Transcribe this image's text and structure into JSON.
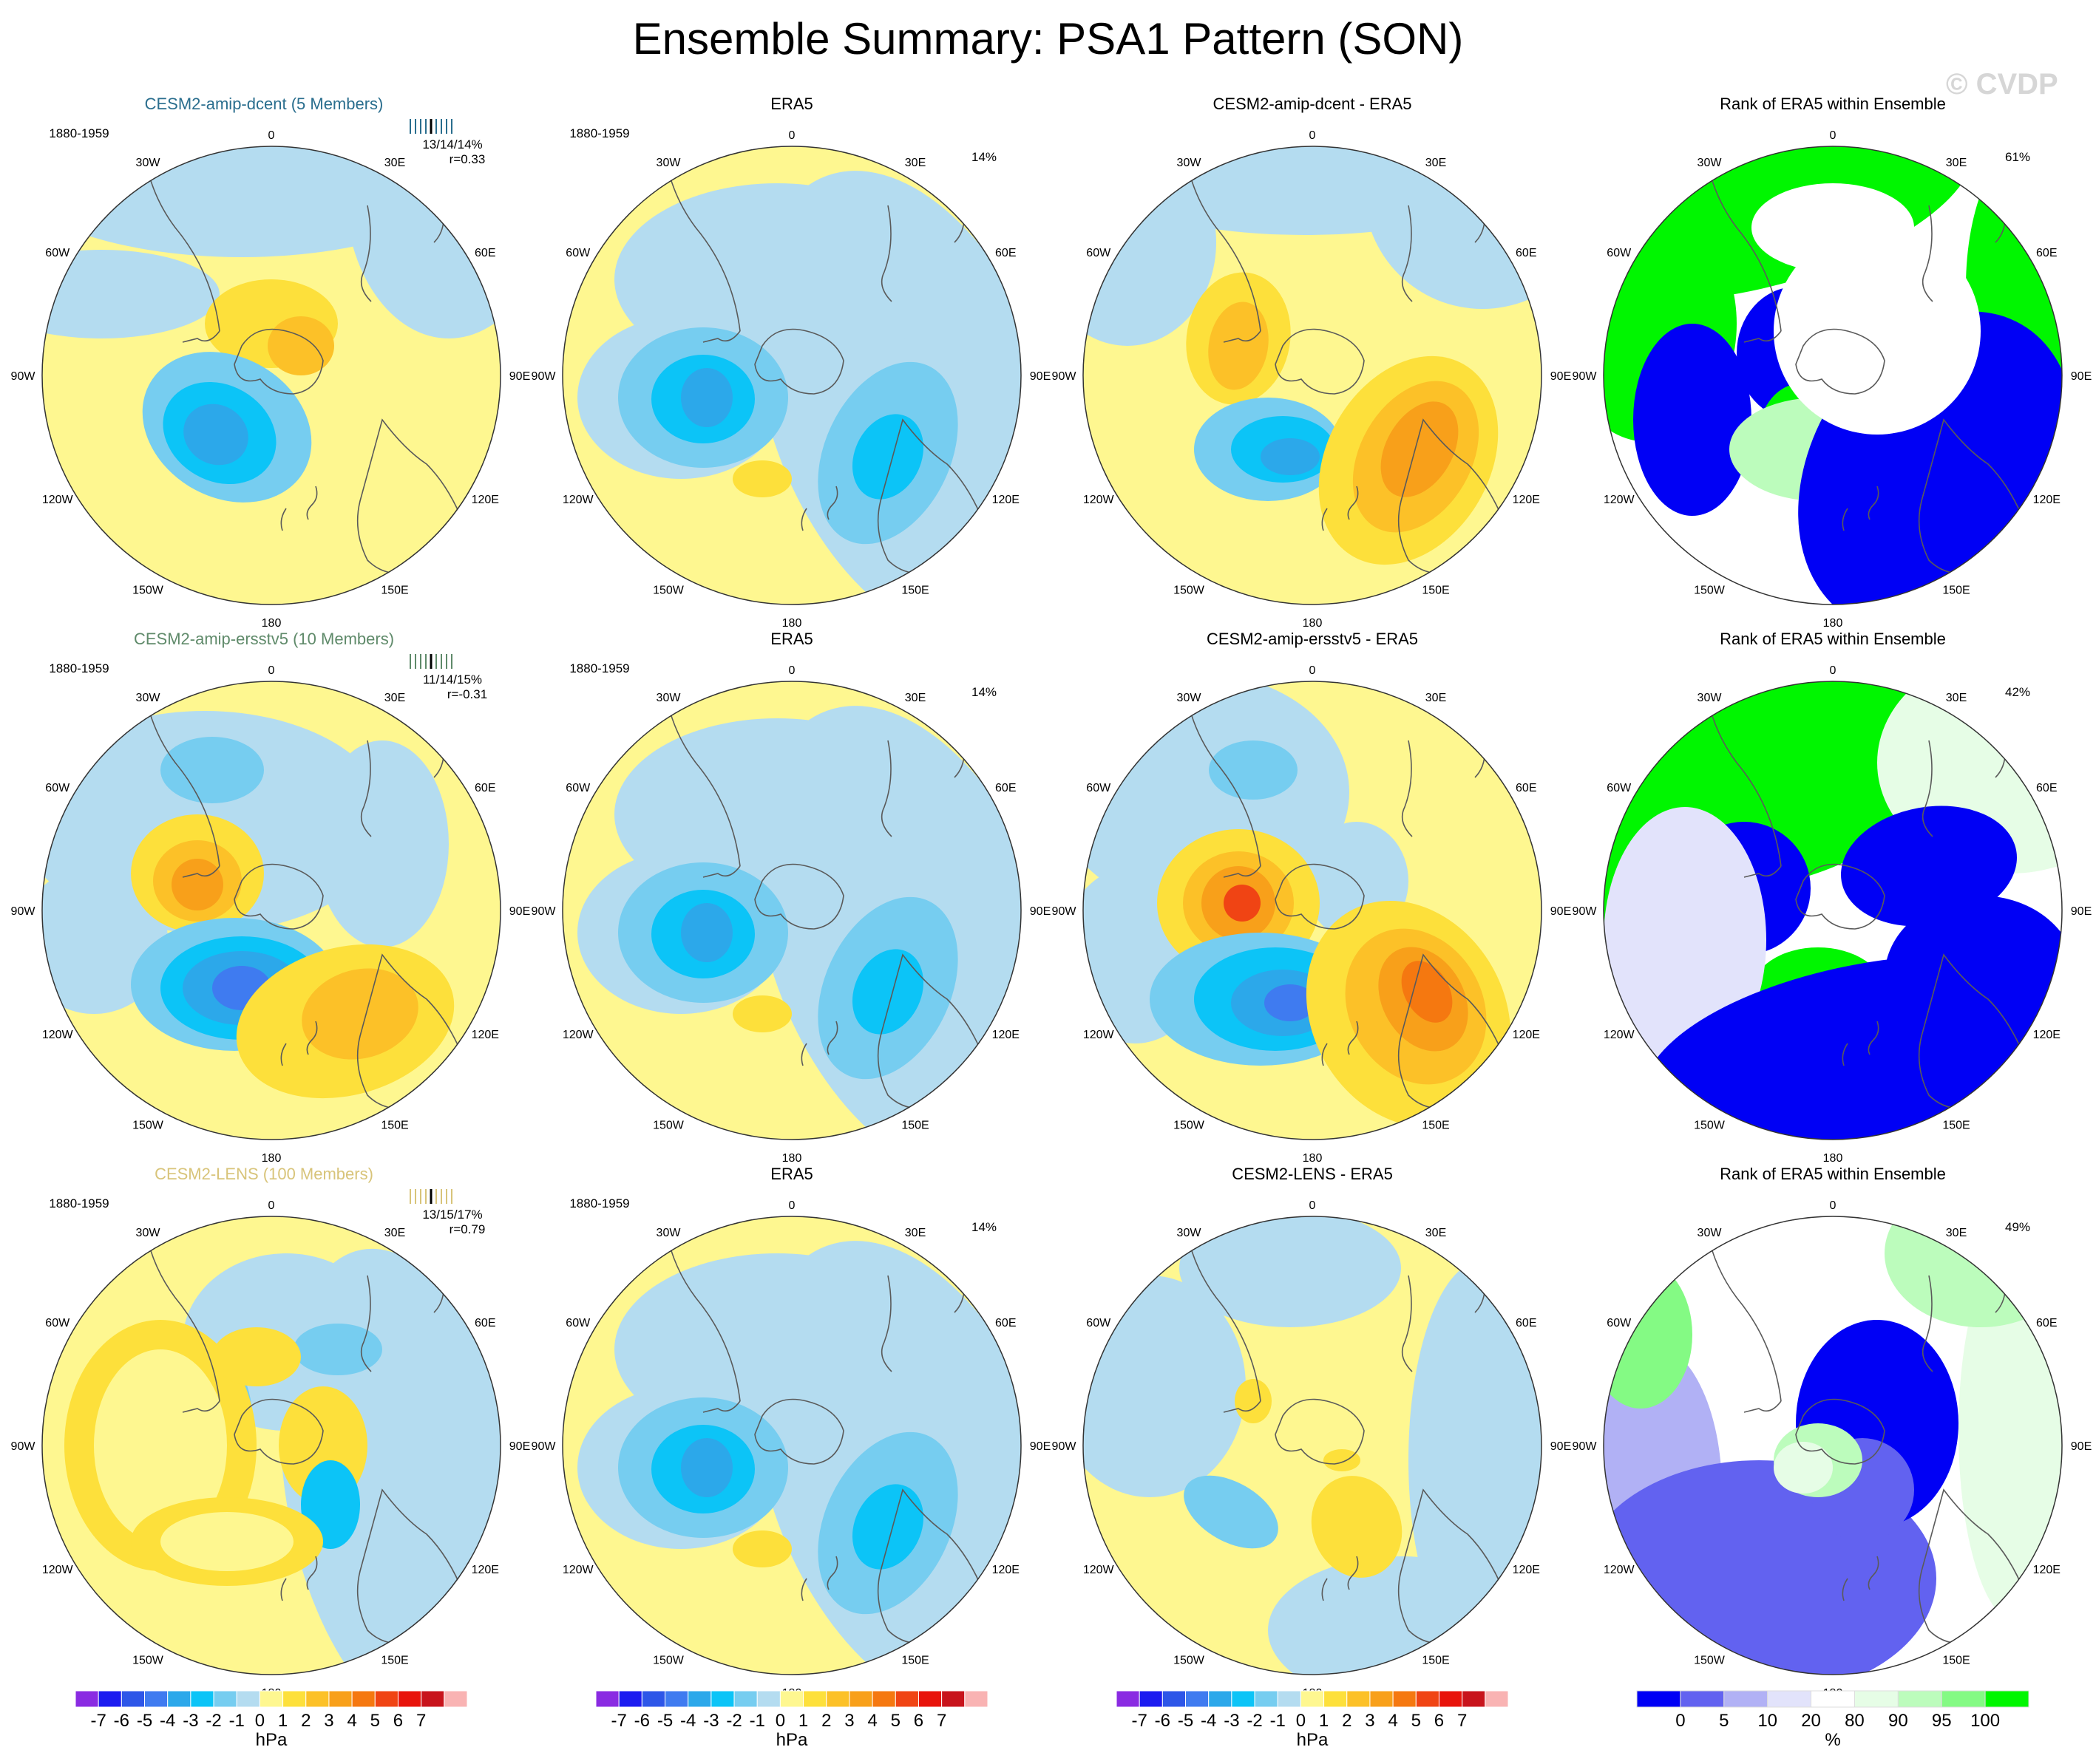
{
  "figure": {
    "title": "Ensemble Summary: PSA1 Pattern (SON)",
    "watermark": "© CVDP"
  },
  "colors": {
    "diverging": [
      "#8a2be2",
      "#1c1cf0",
      "#2d56e8",
      "#3f7bf0",
      "#2ca8ea",
      "#0cc4f7",
      "#76cdf0",
      "#b4dcf0",
      "#fef790",
      "#fde03b",
      "#fcc128",
      "#f8a01a",
      "#f57810",
      "#f04414",
      "#e8140c",
      "#c8141c",
      "#f9b3b3"
    ],
    "rank": [
      "#0000f5",
      "#6262f0",
      "#b1b1f5",
      "#e2e3fb",
      "#ffffff",
      "#e6fde6",
      "#bcfcbc",
      "#84fa84",
      "#00f600"
    ],
    "land_outline": "#5a5a5a"
  },
  "layout_text": {
    "period": "1880-1959",
    "lon_labels": [
      "0",
      "30E",
      "60E",
      "90E",
      "120E",
      "150E",
      "180",
      "150W",
      "120W",
      "90W",
      "60W",
      "30W"
    ]
  },
  "rows": [
    {
      "model": "CESM2-amip-dcent (5 Members)",
      "model_color": "#2a6e8e",
      "stats": "13/14/14%",
      "corr": "r=0.33",
      "era5_title": "ERA5",
      "era5_pct": "14%",
      "diff_title": "CESM2-amip-dcent - ERA5",
      "rank_title": "Rank of ERA5 within Ensemble",
      "rank_pct": "61%"
    },
    {
      "model": "CESM2-amip-ersstv5 (10 Members)",
      "model_color": "#5f8a6a",
      "stats": "11/14/15%",
      "corr": "r=-0.31",
      "era5_title": "ERA5",
      "era5_pct": "14%",
      "diff_title": "CESM2-amip-ersstv5 - ERA5",
      "rank_title": "Rank of ERA5 within Ensemble",
      "rank_pct": "42%"
    },
    {
      "model": "CESM2-LENS (100 Members)",
      "model_color": "#d8c47a",
      "stats": "13/15/17%",
      "corr": "r=0.79",
      "era5_title": "ERA5",
      "era5_pct": "14%",
      "diff_title": "CESM2-LENS - ERA5",
      "rank_title": "Rank of ERA5 within Ensemble",
      "rank_pct": "49%"
    }
  ],
  "colorbars": {
    "diverging_labels": [
      "-7",
      "-6",
      "-5",
      "-4",
      "-3",
      "-2",
      "-1",
      "0",
      "1",
      "2",
      "3",
      "4",
      "5",
      "6",
      "7"
    ],
    "diverging_unit": "hPa",
    "rank_labels": [
      "0",
      "5",
      "10",
      "20",
      "80",
      "90",
      "95",
      "100"
    ],
    "rank_unit": "%"
  },
  "chart_data": [
    {
      "type": "heatmap",
      "title": "CESM2-amip-dcent (5 Members)",
      "unit": "hPa",
      "period": "1880-1959",
      "pattern_stats": "13/14/14%",
      "corr": "r=0.33",
      "minimum": -4,
      "maximum": 2
    },
    {
      "type": "heatmap",
      "title": "ERA5",
      "unit": "hPa",
      "pct": "14%",
      "minimum": -4,
      "maximum": 1
    },
    {
      "type": "heatmap",
      "title": "CESM2-amip-dcent - ERA5",
      "unit": "hPa",
      "minimum": -4,
      "maximum": 3
    },
    {
      "type": "heatmap",
      "title": "Rank of ERA5 within Ensemble",
      "unit": "%",
      "pct": "61%"
    },
    {
      "type": "heatmap",
      "title": "CESM2-amip-ersstv5 (10 Members)",
      "unit": "hPa",
      "period": "1880-1959",
      "pattern_stats": "11/14/15%",
      "corr": "r=-0.31",
      "minimum": -5,
      "maximum": 3
    },
    {
      "type": "heatmap",
      "title": "ERA5",
      "unit": "hPa",
      "pct": "14%",
      "minimum": -4,
      "maximum": 1
    },
    {
      "type": "heatmap",
      "title": "CESM2-amip-ersstv5 - ERA5",
      "unit": "hPa",
      "minimum": -5,
      "maximum": 5
    },
    {
      "type": "heatmap",
      "title": "Rank of ERA5 within Ensemble",
      "unit": "%",
      "pct": "42%"
    },
    {
      "type": "heatmap",
      "title": "CESM2-LENS (100 Members)",
      "unit": "hPa",
      "period": "1880-1959",
      "pattern_stats": "13/15/17%",
      "corr": "r=0.79",
      "minimum": -4,
      "maximum": 1
    },
    {
      "type": "heatmap",
      "title": "ERA5",
      "unit": "hPa",
      "pct": "14%",
      "minimum": -4,
      "maximum": 1
    },
    {
      "type": "heatmap",
      "title": "CESM2-LENS - ERA5",
      "unit": "hPa",
      "minimum": -2,
      "maximum": 1
    },
    {
      "type": "heatmap",
      "title": "Rank of ERA5 within Ensemble",
      "unit": "%",
      "pct": "49%"
    }
  ]
}
